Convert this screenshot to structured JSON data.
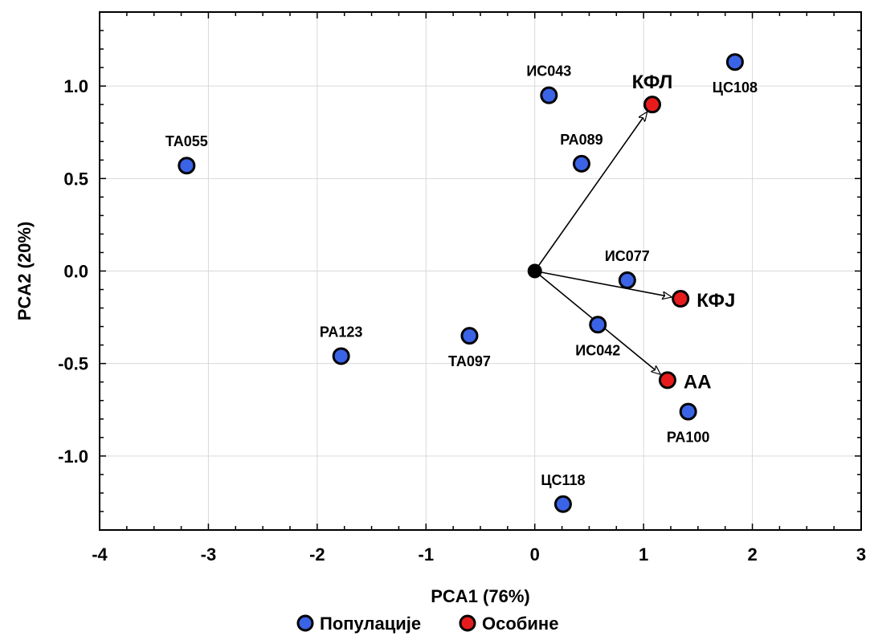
{
  "chart_data": {
    "type": "scatter",
    "xlabel": "PCA1 (76%)",
    "ylabel": "PCA2 (20%)",
    "xlim": [
      -4,
      3
    ],
    "ylim": [
      -1.4,
      1.4
    ],
    "x_ticks": [
      -4,
      -3,
      -2,
      -1,
      0,
      1,
      2,
      3
    ],
    "x_tick_labels": [
      "-4",
      "-3",
      "-2",
      "-1",
      "0",
      "1",
      "2",
      "3"
    ],
    "y_ticks": [
      -1.0,
      -0.5,
      0.0,
      0.5,
      1.0
    ],
    "y_tick_labels": [
      "-1.0",
      "-0.5",
      "0.0",
      "0.5",
      "1.0"
    ],
    "grid": true,
    "legend_position": "bottom-center",
    "origin": {
      "x": 0,
      "y": 0,
      "color": "#000000"
    },
    "series": [
      {
        "name": "Популације",
        "color": "#3b63e6",
        "points": [
          {
            "label": "ТА055",
            "x": -3.2,
            "y": 0.57,
            "label_pos": "above"
          },
          {
            "label": "ИС043",
            "x": 0.13,
            "y": 0.95,
            "label_pos": "above"
          },
          {
            "label": "ЦС108",
            "x": 1.84,
            "y": 1.13,
            "label_pos": "below"
          },
          {
            "label": "РА089",
            "x": 0.43,
            "y": 0.58,
            "label_pos": "above"
          },
          {
            "label": "ИС077",
            "x": 0.85,
            "y": -0.05,
            "label_pos": "above"
          },
          {
            "label": "ИС042",
            "x": 0.58,
            "y": -0.29,
            "label_pos": "below"
          },
          {
            "label": "ТА097",
            "x": -0.6,
            "y": -0.35,
            "label_pos": "below"
          },
          {
            "label": "РА123",
            "x": -1.78,
            "y": -0.46,
            "label_pos": "above"
          },
          {
            "label": "РА100",
            "x": 1.41,
            "y": -0.76,
            "label_pos": "below"
          },
          {
            "label": "ЦС118",
            "x": 0.26,
            "y": -1.26,
            "label_pos": "above"
          }
        ]
      },
      {
        "name": "Особине",
        "color": "#e61c1c",
        "points": [
          {
            "label": "КФЛ",
            "x": 1.08,
            "y": 0.9,
            "label_pos": "above"
          },
          {
            "label": "КФЈ",
            "x": 1.34,
            "y": -0.15,
            "label_pos": "right"
          },
          {
            "label": "АА",
            "x": 1.22,
            "y": -0.59,
            "label_pos": "right"
          }
        ]
      }
    ]
  }
}
